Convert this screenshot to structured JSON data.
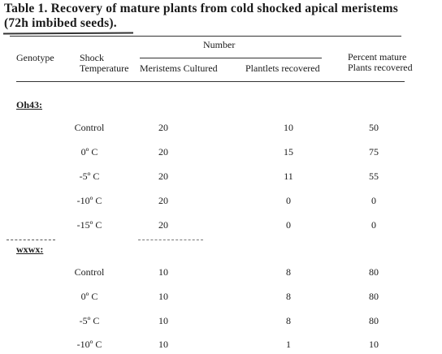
{
  "table": {
    "title_line1": "Table 1.  Recovery of mature plants from cold shocked apical meristems",
    "title_line2": "(72h imbibed seeds).",
    "header": {
      "number": "Number",
      "genotype": "Genotype",
      "shock_line1": "Shock",
      "shock_line2": "Temperature",
      "meristems_cultured": "Meristems Cultured",
      "plantlets_recovered": "Plantlets recovered",
      "percent_line1": "Percent mature",
      "percent_line2": "Plants recovered"
    },
    "groups": [
      {
        "name": "Oh43:",
        "rows": [
          {
            "temp": "Control",
            "meristems": "20",
            "plantlets": "10",
            "percent": "50"
          },
          {
            "temp": "0º  C",
            "meristems": "20",
            "plantlets": "15",
            "percent": "75"
          },
          {
            "temp": "-5º  C",
            "meristems": "20",
            "plantlets": "11",
            "percent": "55"
          },
          {
            "temp": "-10º  C",
            "meristems": "20",
            "plantlets": "0",
            "percent": "0"
          },
          {
            "temp": "-15º  C",
            "meristems": "20",
            "plantlets": "0",
            "percent": "0"
          }
        ]
      },
      {
        "name": "wxwx:",
        "rows": [
          {
            "temp": "Control",
            "meristems": "10",
            "plantlets": "8",
            "percent": "80"
          },
          {
            "temp": "0º  C",
            "meristems": "10",
            "plantlets": "8",
            "percent": "80"
          },
          {
            "temp": "-5º  C",
            "meristems": "10",
            "plantlets": "8",
            "percent": "80"
          },
          {
            "temp": "-10º  C",
            "meristems": "10",
            "plantlets": "1",
            "percent": "10"
          }
        ]
      }
    ]
  }
}
